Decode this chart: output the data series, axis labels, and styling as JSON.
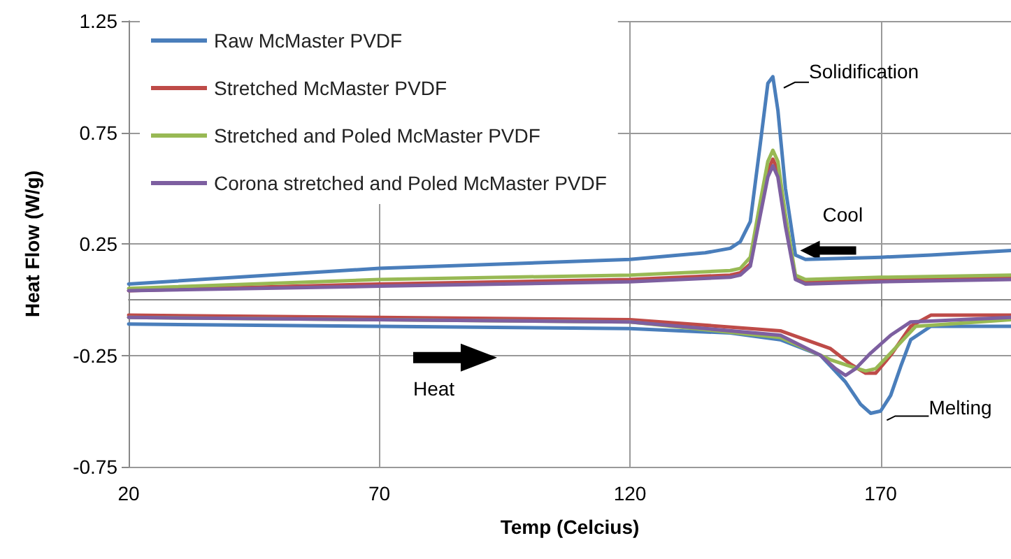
{
  "chart_data": {
    "type": "line",
    "xlabel": "Temp (Celcius)",
    "ylabel": "Heat Flow (W/g)",
    "xlim": [
      20,
      196
    ],
    "xticks": [
      20,
      70,
      120,
      170
    ],
    "ylim": [
      -0.75,
      1.25
    ],
    "yticks": [
      -0.75,
      -0.25,
      0.25,
      0.75,
      1.25
    ],
    "grid": true,
    "legend": "top left",
    "marker": "none",
    "line_style": "solid",
    "series": [
      {
        "name": "Raw McMaster PVDF",
        "color": "#4a7ebb",
        "x": [
          20,
          70,
          120,
          140,
          150,
          158,
          163,
          166,
          168,
          170,
          172,
          174,
          176,
          180,
          196,
          null,
          196,
          180,
          170,
          155,
          153,
          151,
          149.5,
          148.5,
          147.5,
          146,
          144,
          142,
          140,
          135,
          120,
          70,
          20
        ],
        "values": [
          -0.11,
          -0.12,
          -0.13,
          -0.15,
          -0.18,
          -0.25,
          -0.37,
          -0.47,
          -0.51,
          -0.5,
          -0.43,
          -0.3,
          -0.18,
          -0.12,
          -0.12,
          null,
          0.22,
          0.2,
          0.19,
          0.18,
          0.2,
          0.5,
          0.85,
          1.0,
          0.97,
          0.7,
          0.35,
          0.26,
          0.23,
          0.21,
          0.18,
          0.14,
          0.07
        ]
      },
      {
        "name": "Stretched McMaster PVDF",
        "color": "#be4b48",
        "x": [
          20,
          70,
          120,
          150,
          160,
          164,
          167,
          169,
          172,
          176,
          180,
          196,
          null,
          196,
          170,
          155,
          153,
          151,
          149.5,
          148.5,
          147.5,
          146,
          144,
          142,
          140,
          120,
          70,
          20
        ],
        "values": [
          -0.07,
          -0.08,
          -0.09,
          -0.14,
          -0.22,
          -0.29,
          -0.33,
          -0.33,
          -0.25,
          -0.12,
          -0.07,
          -0.07,
          null,
          0.1,
          0.09,
          0.08,
          0.1,
          0.35,
          0.58,
          0.63,
          0.58,
          0.4,
          0.16,
          0.12,
          0.11,
          0.09,
          0.07,
          0.04
        ]
      },
      {
        "name": "Stretched and Poled McMaster PVDF",
        "color": "#98b954",
        "x": [
          20,
          70,
          120,
          150,
          160,
          164,
          167,
          169,
          172,
          177,
          196,
          null,
          196,
          170,
          155,
          153,
          151,
          149.5,
          148.5,
          147.5,
          146,
          144,
          142,
          140,
          120,
          70,
          20
        ],
        "values": [
          -0.08,
          -0.09,
          -0.1,
          -0.17,
          -0.27,
          -0.3,
          -0.32,
          -0.31,
          -0.24,
          -0.12,
          -0.09,
          null,
          0.11,
          0.1,
          0.09,
          0.11,
          0.38,
          0.62,
          0.67,
          0.62,
          0.44,
          0.19,
          0.14,
          0.13,
          0.11,
          0.09,
          0.05
        ]
      },
      {
        "name": "Corona stretched and Poled McMaster PVDF",
        "color": "#7d5fa0",
        "x": [
          20,
          70,
          120,
          150,
          158,
          161,
          163,
          165,
          168,
          172,
          176,
          196,
          null,
          196,
          170,
          155,
          153,
          151,
          149.5,
          148.5,
          147.5,
          146,
          144,
          142,
          140,
          120,
          70,
          20
        ],
        "values": [
          -0.08,
          -0.09,
          -0.1,
          -0.16,
          -0.25,
          -0.31,
          -0.34,
          -0.31,
          -0.24,
          -0.16,
          -0.1,
          -0.08,
          null,
          0.09,
          0.08,
          0.07,
          0.09,
          0.33,
          0.55,
          0.6,
          0.55,
          0.38,
          0.15,
          0.11,
          0.1,
          0.08,
          0.06,
          0.04
        ]
      }
    ],
    "annotations": [
      {
        "text": "Solidification",
        "x": 149,
        "y": 1.0
      },
      {
        "text": "Melting",
        "x": 169,
        "y": -0.51
      },
      {
        "text": "Cool",
        "x": 164,
        "y": 0.22
      },
      "Heat"
    ]
  }
}
